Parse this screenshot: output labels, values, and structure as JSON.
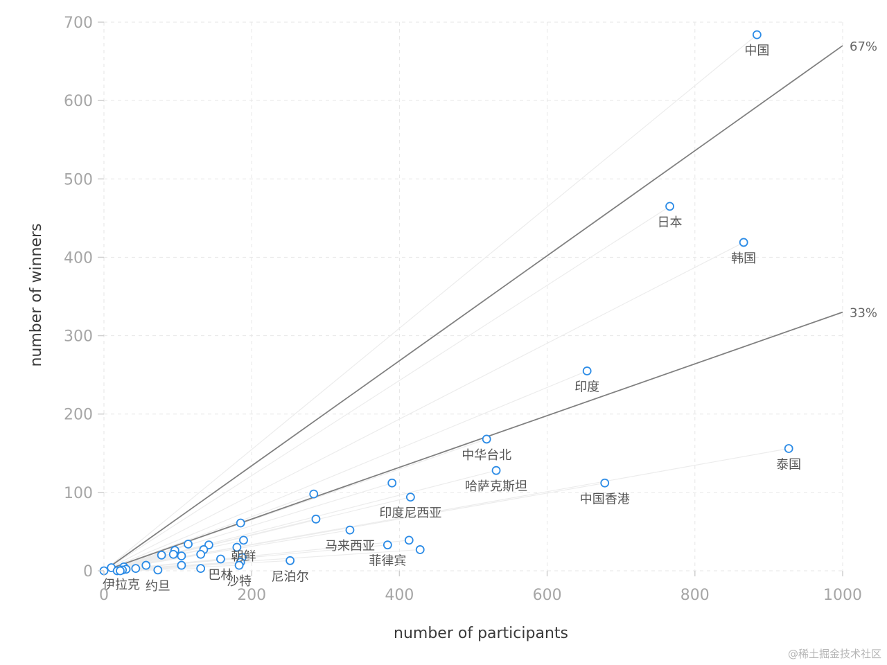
{
  "chart_data": {
    "type": "scatter",
    "title": "",
    "xlabel": "number of participants",
    "ylabel": "number of winners",
    "xlim": [
      0,
      1000
    ],
    "ylim": [
      0,
      700
    ],
    "xticks": [
      0,
      200,
      400,
      600,
      800,
      1000
    ],
    "yticks": [
      0,
      100,
      200,
      300,
      400,
      500,
      600,
      700
    ],
    "grid": true,
    "colors": {
      "marker": "#2b8be6",
      "reference_line": "#808080",
      "guide_line": "#ececec",
      "grid": "#e6e6e6"
    },
    "reference_lines": [
      {
        "slope": 0.67,
        "label": "67%"
      },
      {
        "slope": 0.33,
        "label": "33%"
      }
    ],
    "points": [
      {
        "x": 884,
        "y": 684,
        "label": "中国"
      },
      {
        "x": 766,
        "y": 465,
        "label": "日本"
      },
      {
        "x": 866,
        "y": 419,
        "label": "韩国"
      },
      {
        "x": 654,
        "y": 255,
        "label": "印度"
      },
      {
        "x": 518,
        "y": 168,
        "label": "中华台北"
      },
      {
        "x": 927,
        "y": 156,
        "label": "泰国"
      },
      {
        "x": 531,
        "y": 128,
        "label": "哈萨克斯坦"
      },
      {
        "x": 678,
        "y": 112,
        "label": "中国香港"
      },
      {
        "x": 415,
        "y": 94,
        "label": "印度尼西亚"
      },
      {
        "x": 390,
        "y": 112,
        "label": ""
      },
      {
        "x": 284,
        "y": 98,
        "label": ""
      },
      {
        "x": 287,
        "y": 66,
        "label": ""
      },
      {
        "x": 333,
        "y": 52,
        "label": "马来西亚"
      },
      {
        "x": 384,
        "y": 33,
        "label": "菲律宾"
      },
      {
        "x": 413,
        "y": 39,
        "label": ""
      },
      {
        "x": 428,
        "y": 27,
        "label": ""
      },
      {
        "x": 252,
        "y": 13,
        "label": "尼泊尔"
      },
      {
        "x": 185,
        "y": 61,
        "label": ""
      },
      {
        "x": 189,
        "y": 39,
        "label": "朝鲜"
      },
      {
        "x": 180,
        "y": 30,
        "label": ""
      },
      {
        "x": 187,
        "y": 17,
        "label": ""
      },
      {
        "x": 185,
        "y": 11,
        "label": ""
      },
      {
        "x": 183,
        "y": 7,
        "label": "沙特"
      },
      {
        "x": 142,
        "y": 33,
        "label": ""
      },
      {
        "x": 135,
        "y": 27,
        "label": ""
      },
      {
        "x": 131,
        "y": 21,
        "label": ""
      },
      {
        "x": 158,
        "y": 15,
        "label": "巴林"
      },
      {
        "x": 114,
        "y": 34,
        "label": ""
      },
      {
        "x": 96,
        "y": 26,
        "label": ""
      },
      {
        "x": 94,
        "y": 21,
        "label": ""
      },
      {
        "x": 105,
        "y": 19,
        "label": ""
      },
      {
        "x": 78,
        "y": 20,
        "label": ""
      },
      {
        "x": 105,
        "y": 7,
        "label": ""
      },
      {
        "x": 131,
        "y": 3,
        "label": ""
      },
      {
        "x": 57,
        "y": 7,
        "label": ""
      },
      {
        "x": 43,
        "y": 3,
        "label": ""
      },
      {
        "x": 73,
        "y": 1,
        "label": "约旦"
      },
      {
        "x": 10,
        "y": 4,
        "label": ""
      },
      {
        "x": 27,
        "y": 5,
        "label": ""
      },
      {
        "x": 30,
        "y": 2,
        "label": ""
      },
      {
        "x": 25,
        "y": 1,
        "label": ""
      },
      {
        "x": 18,
        "y": 0,
        "label": ""
      },
      {
        "x": 22,
        "y": 0,
        "label": ""
      },
      {
        "x": 0,
        "y": 0,
        "label": "伊拉克"
      }
    ]
  },
  "watermark": "@稀土掘金技术社区"
}
